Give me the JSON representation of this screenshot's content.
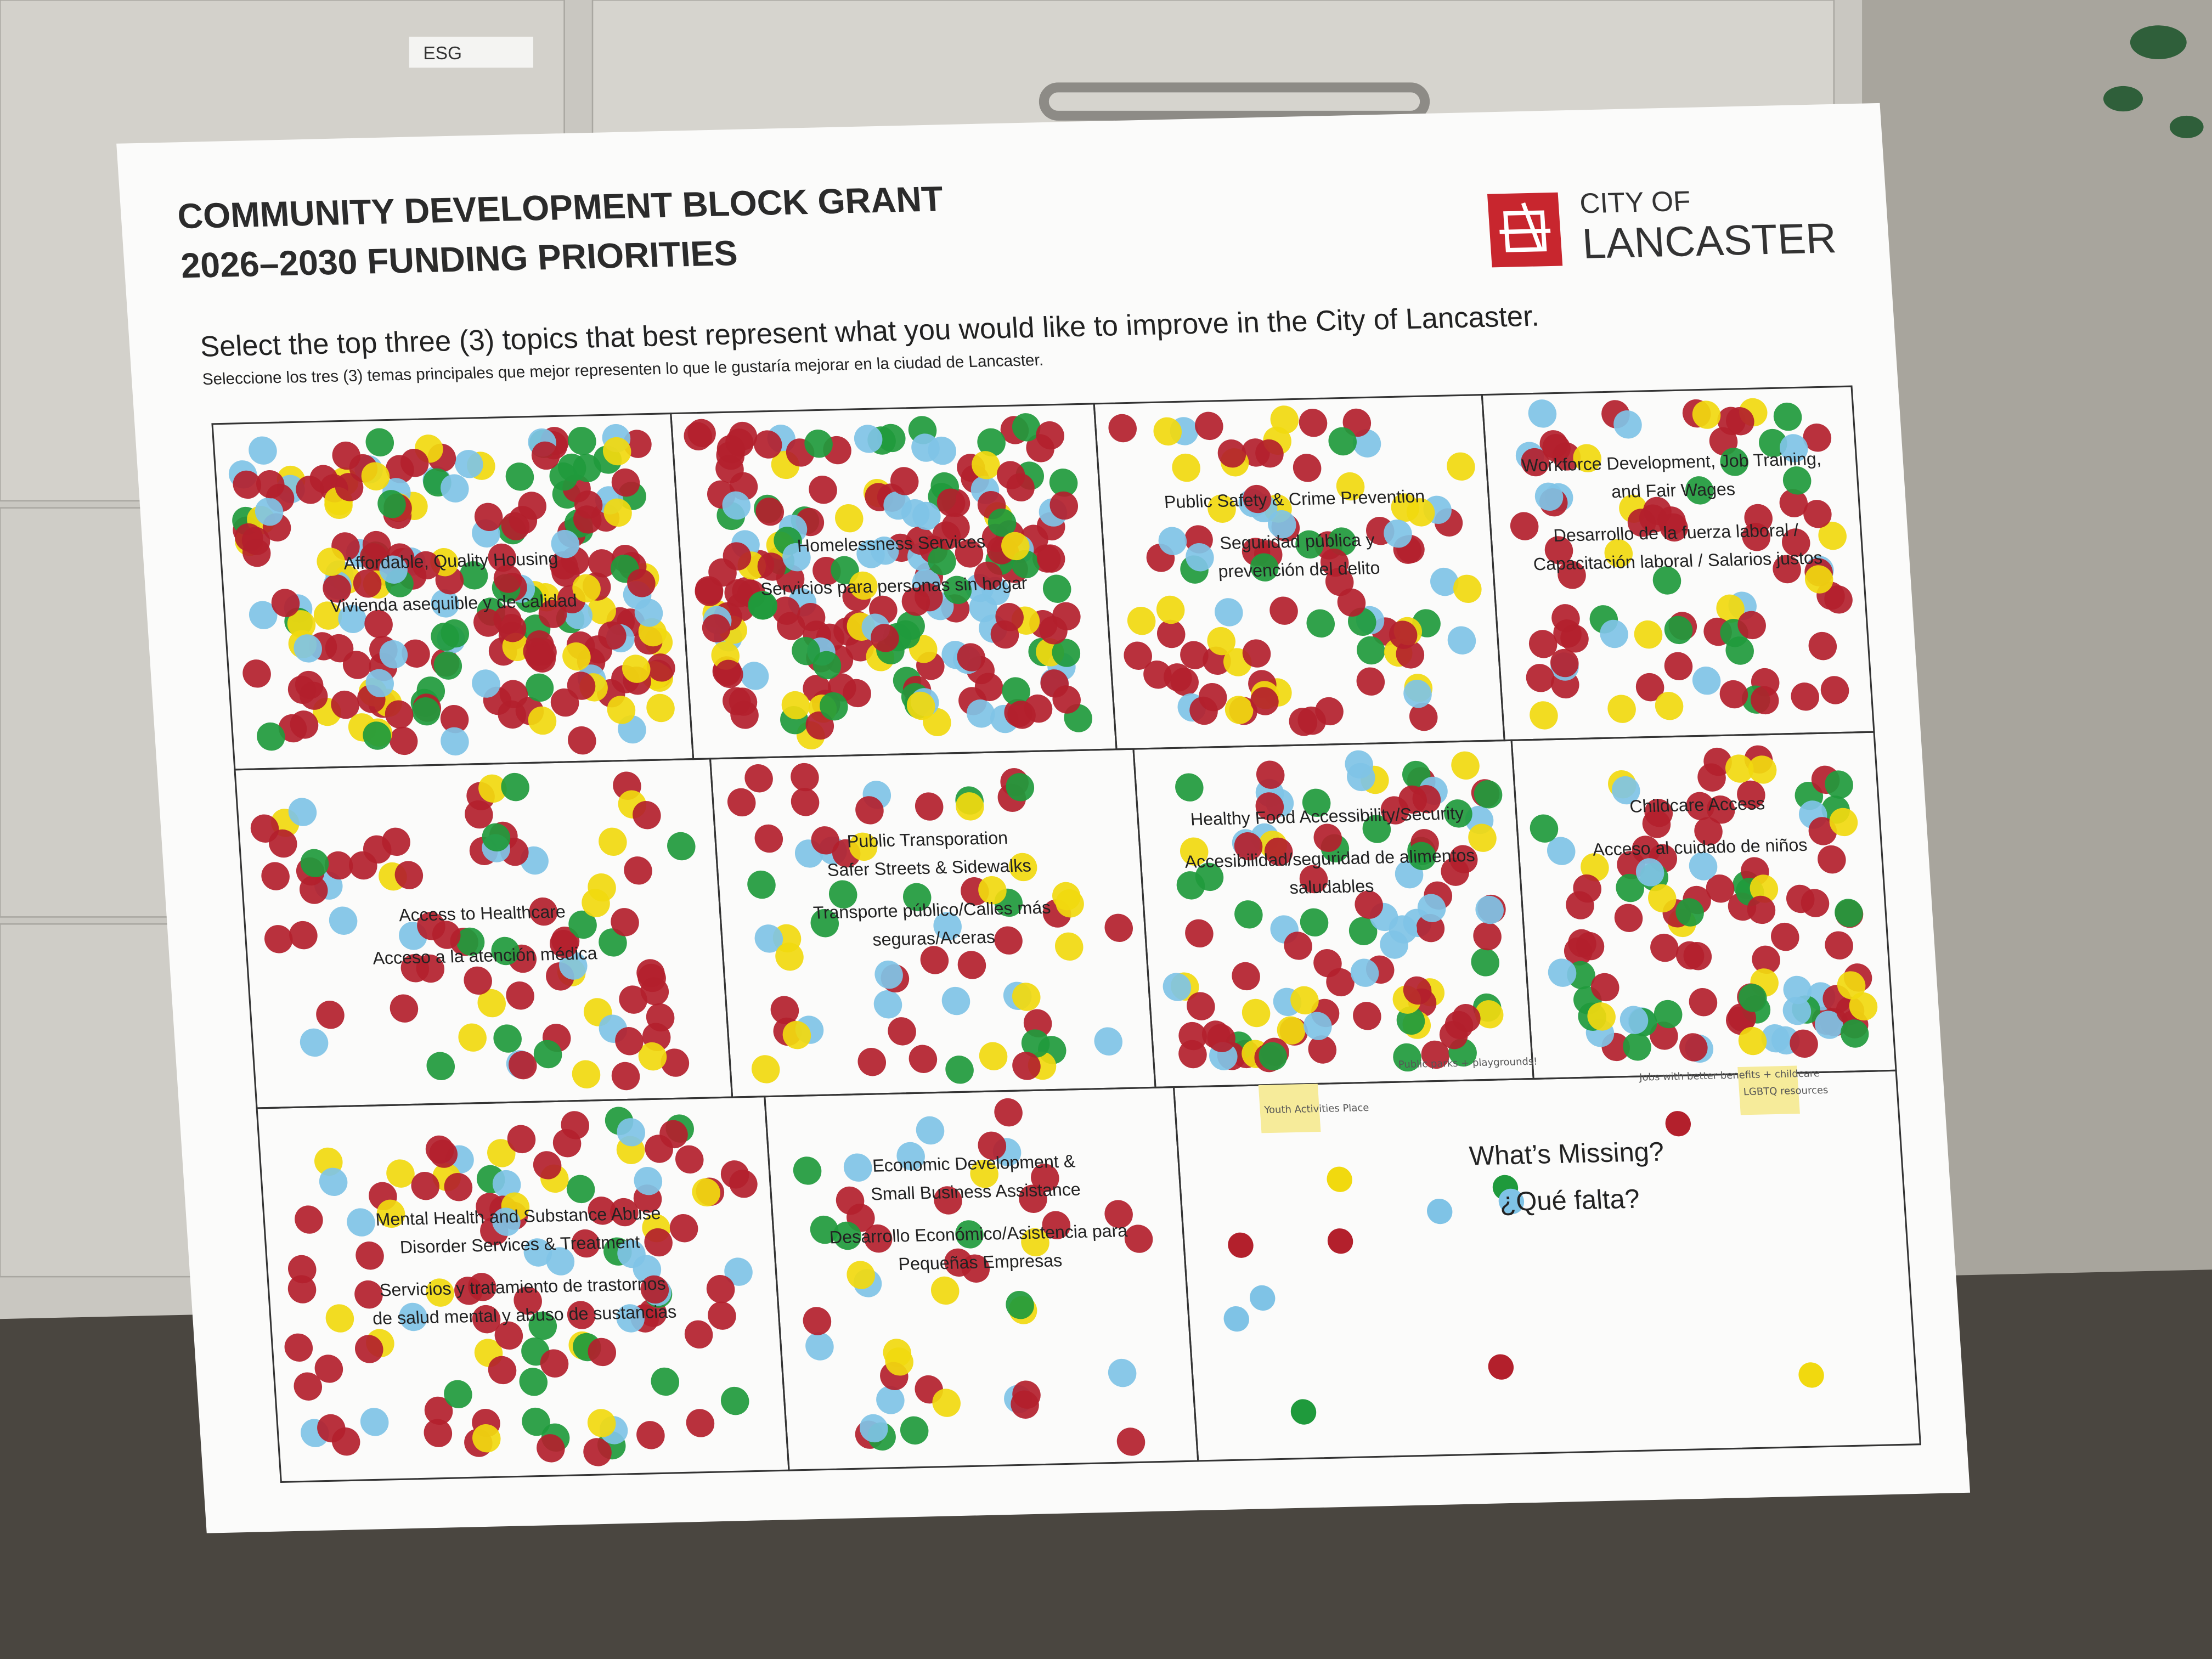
{
  "cabinet_label": "ESG",
  "header": {
    "title_line1": "COMMUNITY DEVELOPMENT BLOCK GRANT",
    "title_line2": "2026–2030 FUNDING PRIORITIES",
    "logo_top": "CITY OF",
    "logo_bottom": "LANCASTER"
  },
  "instructions": {
    "english": "Select the top three (3) topics that best represent what you would like to improve in the City of Lancaster.",
    "spanish": "Seleccione los tres (3) temas principales que mejor representen lo que le gustaría mejorar en la ciudad de Lancaster."
  },
  "topics": [
    {
      "english": [
        "Affordable, Quality Housing"
      ],
      "spanish": [
        "Vivienda asequible y de calidad"
      ]
    },
    {
      "english": [
        "Homelessness Services"
      ],
      "spanish": [
        "Servicios para personas sin hogar"
      ]
    },
    {
      "english": [
        "Public Safety & Crime Prevention"
      ],
      "spanish": [
        "Seguridad pública y",
        "prevención del delito"
      ]
    },
    {
      "english": [
        "Workforce Development, Job Training,",
        "and Fair Wages"
      ],
      "spanish": [
        "Desarrollo de la fuerza laboral /",
        "Capacitación laboral / Salarios justos"
      ]
    },
    {
      "english": [
        "Access to Healthcare"
      ],
      "spanish": [
        "Acceso a la atención médica"
      ]
    },
    {
      "english": [
        "Public Transporation",
        "Safer Streets & Sidewalks"
      ],
      "spanish": [
        "Transporte público/Calles más",
        "seguras/Aceras"
      ]
    },
    {
      "english": [
        "Healthy Food Accessibility/Security"
      ],
      "spanish": [
        "Accesibilidad/seguridad de alimentos",
        "saludables"
      ]
    },
    {
      "english": [
        "Childcare Access"
      ],
      "spanish": [
        "Acceso al cuidado de niños"
      ]
    },
    {
      "english": [
        "Mental Health and Substance Abuse",
        "Disorder Services & Treatment"
      ],
      "spanish": [
        "Servicios y tratamiento de trastornos",
        "de salud mental y abuso de sustancias"
      ]
    },
    {
      "english": [
        "Economic Development &",
        "Small Business Assistance"
      ],
      "spanish": [
        "Desarrollo Económico/Asistencia para",
        "Pequeñas Empresas"
      ]
    }
  ],
  "missing": {
    "english": "What’s Missing?",
    "spanish": "¿Qué falta?",
    "notes": [
      "Youth Activities Place",
      "LGBTQ resources",
      "Public parks + playgrounds!",
      "Jobs with better benefits + childcare"
    ]
  }
}
